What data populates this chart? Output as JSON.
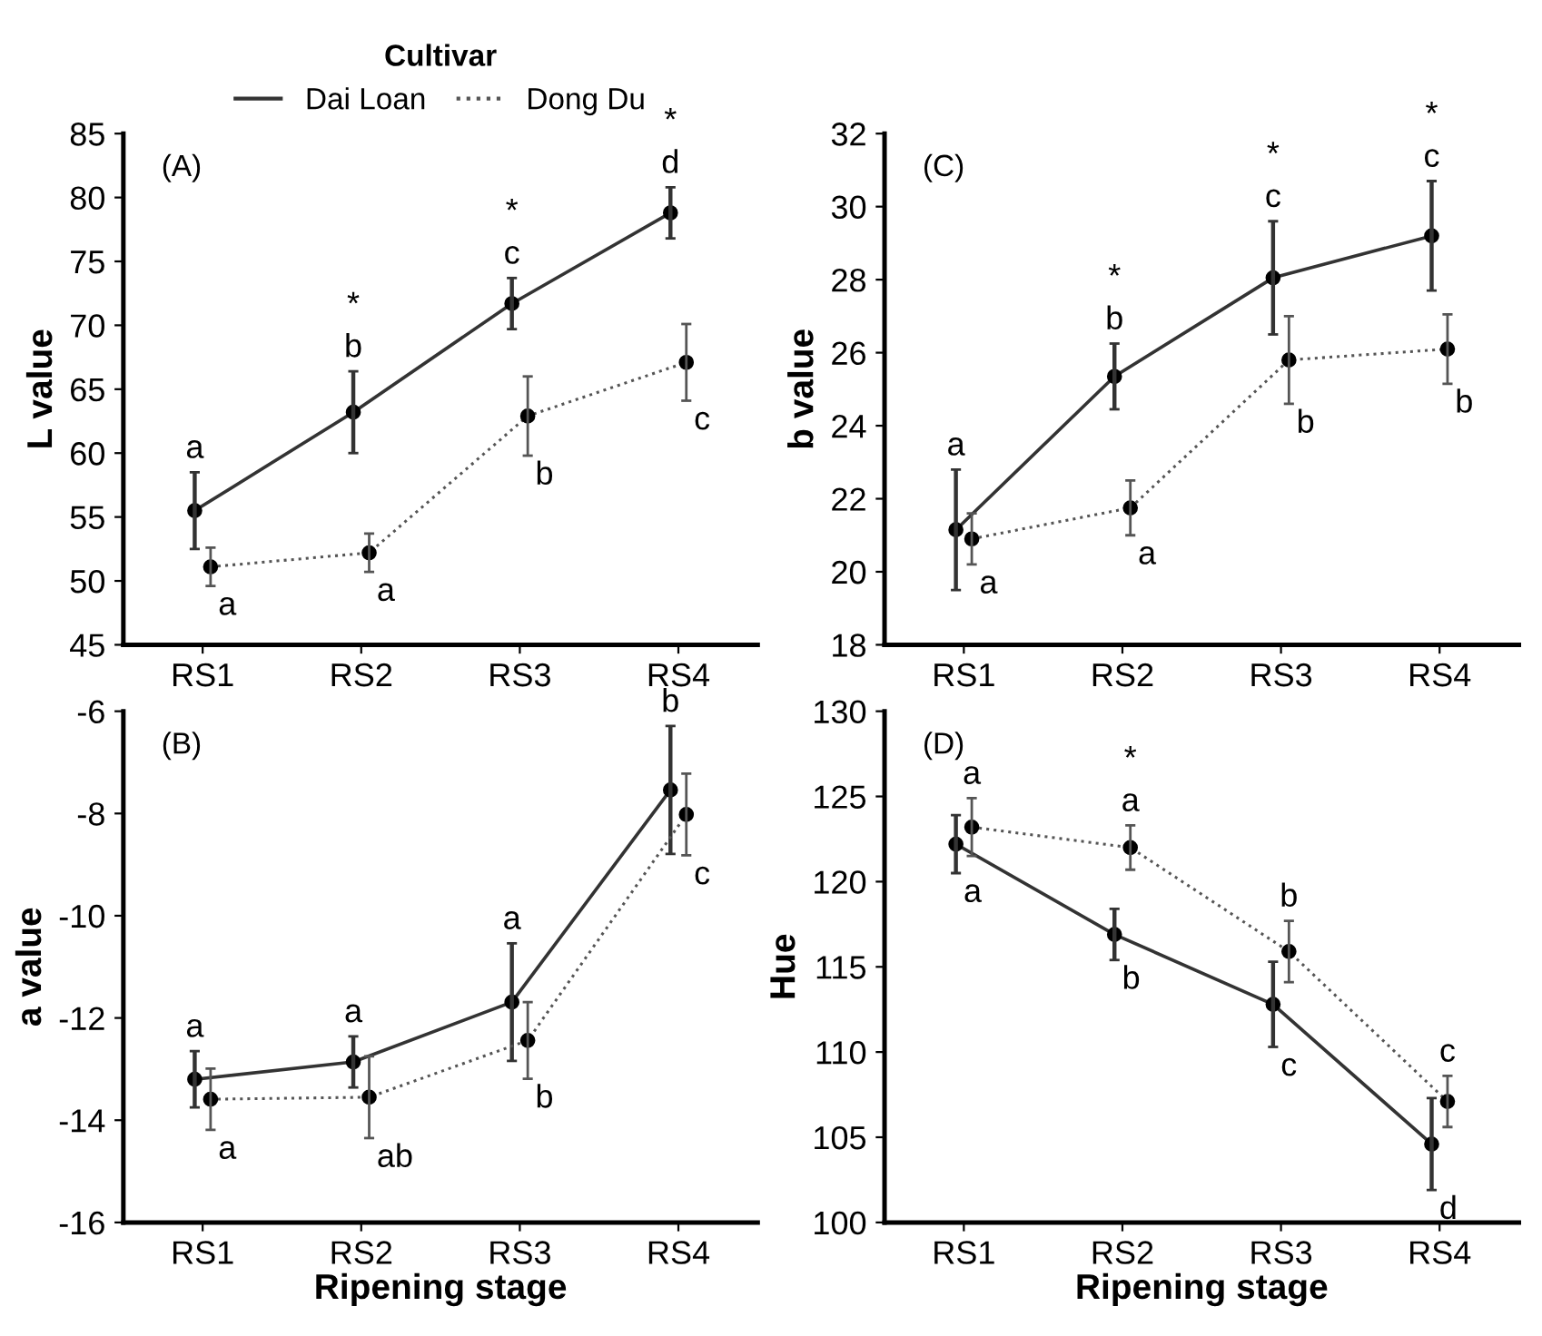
{
  "chart_data": [
    {
      "type": "line",
      "title": "(A)",
      "ylabel": "L value",
      "legend_title": "Cultivar",
      "legend": "top",
      "marker": "circle",
      "grid": false,
      "categories": [
        "RS1",
        "RS2",
        "RS3",
        "RS4"
      ],
      "ylim": [
        45,
        85
      ],
      "yticks": [
        45,
        50,
        55,
        60,
        65,
        70,
        75,
        80,
        85
      ],
      "series": [
        {
          "name": "Dai Loan",
          "color": "#333333",
          "line_style": "solid",
          "values": [
            55.5,
            63.2,
            71.7,
            78.8
          ],
          "errors": [
            3.0,
            3.2,
            2.0,
            2.0
          ],
          "value_labels": [
            "a",
            "*\nb",
            "*\nc",
            "*\nd"
          ]
        },
        {
          "name": "Dong Du",
          "color": "#555555",
          "line_style": "dotted",
          "values": [
            51.1,
            52.2,
            62.9,
            67.1
          ],
          "errors": [
            1.5,
            1.5,
            3.1,
            3.0
          ],
          "value_labels": [
            "a",
            "a",
            "b",
            "c"
          ]
        }
      ]
    },
    {
      "type": "line",
      "title": "(C)",
      "ylabel": "b value",
      "marker": "circle",
      "grid": false,
      "categories": [
        "RS1",
        "RS2",
        "RS3",
        "RS4"
      ],
      "ylim": [
        18,
        32
      ],
      "yticks": [
        18,
        20,
        22,
        24,
        26,
        28,
        30,
        32
      ],
      "series": [
        {
          "color": "#333333",
          "line_style": "solid",
          "values": [
            21.15,
            25.35,
            28.05,
            29.2
          ],
          "errors": [
            1.65,
            0.9,
            1.55,
            1.5
          ],
          "value_labels": [
            "a",
            "*\nb",
            "*\nc",
            "*\nc"
          ]
        },
        {
          "color": "#555555",
          "line_style": "dotted",
          "values": [
            20.9,
            21.75,
            25.8,
            26.1
          ],
          "errors": [
            0.7,
            0.75,
            1.2,
            0.95
          ],
          "value_labels": [
            "a",
            "a",
            "b",
            "b"
          ]
        }
      ]
    },
    {
      "type": "line",
      "title": "(B)",
      "ylabel": "a value",
      "xlabel": "Ripening stage",
      "marker": "circle",
      "grid": false,
      "categories": [
        "RS1",
        "RS2",
        "RS3",
        "RS4"
      ],
      "ylim": [
        -16,
        -6
      ],
      "yticks": [
        -16,
        -14,
        -12,
        -10,
        -8,
        -6
      ],
      "series": [
        {
          "color": "#333333",
          "line_style": "solid",
          "values": [
            -13.2,
            -12.86,
            -11.69,
            -7.54
          ],
          "errors": [
            0.55,
            0.5,
            1.15,
            1.25
          ],
          "value_labels": [
            "a",
            "a",
            "a",
            "b"
          ]
        },
        {
          "color": "#555555",
          "line_style": "dotted",
          "values": [
            -13.59,
            -13.55,
            -12.44,
            -8.02
          ],
          "errors": [
            0.6,
            0.8,
            0.75,
            0.8
          ],
          "value_labels": [
            "a",
            "ab",
            "b",
            "c"
          ]
        }
      ]
    },
    {
      "type": "line",
      "title": "(D)",
      "ylabel": "Hue",
      "xlabel": "Ripening stage",
      "marker": "circle",
      "grid": false,
      "categories": [
        "RS1",
        "RS2",
        "RS3",
        "RS4"
      ],
      "ylim": [
        100,
        130
      ],
      "yticks": [
        100,
        105,
        110,
        115,
        120,
        125,
        130
      ],
      "series": [
        {
          "color": "#333333",
          "line_style": "solid",
          "values": [
            122.2,
            116.9,
            112.8,
            104.6
          ],
          "errors": [
            1.7,
            1.5,
            2.5,
            2.7
          ],
          "value_labels": [
            "a",
            "b",
            "c",
            "d"
          ]
        },
        {
          "color": "#555555",
          "line_style": "dotted",
          "values": [
            123.2,
            122.0,
            115.9,
            107.1
          ],
          "errors": [
            1.7,
            1.3,
            1.8,
            1.5
          ],
          "value_labels": [
            "a",
            "*\na",
            "b",
            "c"
          ]
        }
      ]
    }
  ]
}
